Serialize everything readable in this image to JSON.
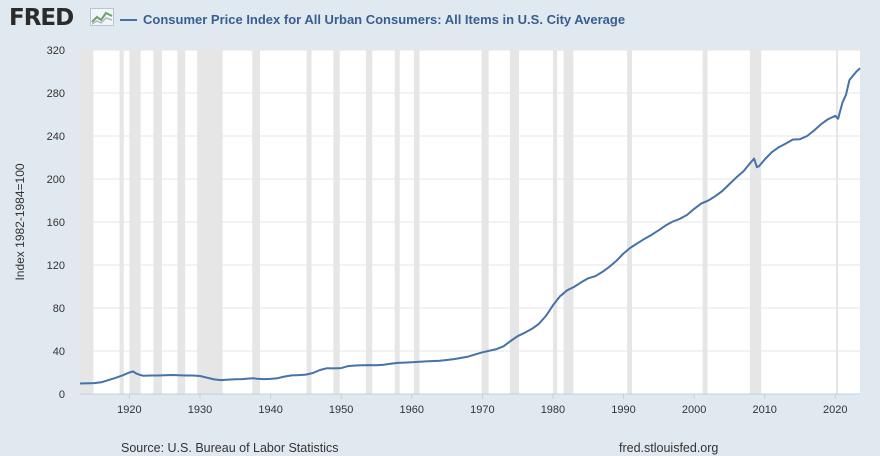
{
  "header": {
    "logo": "FRED",
    "legend_label": "Consumer Price Index for All Urban Consumers: All Items in U.S. City Average"
  },
  "footer": {
    "source": "Source: U.S. Bureau of Labor Statistics",
    "site": "fred.stlouisfed.org"
  },
  "colors": {
    "series": "#4572a7",
    "plot_bg": "#ffffff",
    "page_bg": "#e1e9f0",
    "recession": "#e6e6e6"
  },
  "chart_data": {
    "type": "line",
    "title": "Consumer Price Index for All Urban Consumers: All Items in U.S. City Average",
    "xlabel": "",
    "ylabel": "Index 1982-1984=100",
    "xlim": [
      1913,
      2023.5
    ],
    "ylim": [
      0,
      320
    ],
    "x_ticks": [
      1920,
      1930,
      1940,
      1950,
      1960,
      1970,
      1980,
      1990,
      2000,
      2010,
      2020
    ],
    "y_ticks": [
      0,
      40,
      80,
      120,
      160,
      200,
      240,
      280,
      320
    ],
    "grid": true,
    "recessions": [
      [
        1913.0,
        1914.9
      ],
      [
        1918.6,
        1919.2
      ],
      [
        1920.0,
        1921.6
      ],
      [
        1923.4,
        1924.6
      ],
      [
        1926.8,
        1927.9
      ],
      [
        1929.6,
        1933.2
      ],
      [
        1937.4,
        1938.5
      ],
      [
        1945.1,
        1945.8
      ],
      [
        1948.9,
        1949.8
      ],
      [
        1953.5,
        1954.4
      ],
      [
        1957.6,
        1958.3
      ],
      [
        1960.3,
        1961.1
      ],
      [
        1969.9,
        1970.9
      ],
      [
        1973.9,
        1975.2
      ],
      [
        1980.0,
        1980.6
      ],
      [
        1981.5,
        1982.9
      ],
      [
        1990.5,
        1991.2
      ],
      [
        2001.2,
        2001.9
      ],
      [
        2007.9,
        2009.5
      ],
      [
        2020.1,
        2020.4
      ]
    ],
    "series": [
      {
        "name": "CPIAUCSL",
        "x": [
          1913,
          1915,
          1916,
          1917,
          1918,
          1919,
          1920,
          1920.5,
          1921,
          1921.5,
          1922,
          1923,
          1924,
          1925,
          1926,
          1927,
          1928,
          1929,
          1930,
          1931,
          1932,
          1933,
          1934,
          1935,
          1936,
          1937,
          1937.7,
          1938,
          1939,
          1940,
          1941,
          1942,
          1943,
          1944,
          1945,
          1946,
          1947,
          1948,
          1949,
          1950,
          1951,
          1952,
          1953,
          1954,
          1955,
          1956,
          1957,
          1958,
          1959,
          1960,
          1962,
          1964,
          1966,
          1968,
          1970,
          1972,
          1973,
          1974,
          1975,
          1976,
          1977,
          1978,
          1979,
          1980,
          1981,
          1982,
          1983,
          1984,
          1985,
          1986,
          1987,
          1988,
          1989,
          1990,
          1991,
          1992,
          1993,
          1994,
          1995,
          1996,
          1997,
          1998,
          1999,
          2000,
          2001,
          2002,
          2003,
          2004,
          2005,
          2006,
          2007,
          2008,
          2008.5,
          2008.9,
          2009.2,
          2010,
          2011,
          2012,
          2013,
          2014,
          2015,
          2016,
          2017,
          2018,
          2019,
          2020,
          2020.4,
          2021,
          2021.5,
          2022,
          2022.5,
          2023,
          2023.5
        ],
        "values": [
          9.8,
          10.1,
          10.9,
          12.8,
          15.0,
          17.3,
          20.0,
          21.0,
          19.0,
          17.8,
          16.9,
          17.2,
          17.2,
          17.5,
          17.7,
          17.4,
          17.2,
          17.2,
          16.7,
          15.2,
          13.6,
          12.9,
          13.4,
          13.7,
          13.9,
          14.4,
          14.6,
          14.1,
          13.9,
          14.0,
          14.7,
          16.3,
          17.3,
          17.6,
          18.0,
          19.5,
          22.3,
          24.0,
          23.8,
          24.1,
          26.0,
          26.5,
          26.7,
          26.9,
          26.8,
          27.2,
          28.1,
          28.9,
          29.2,
          29.6,
          30.3,
          31.0,
          32.5,
          34.8,
          38.8,
          41.8,
          44.4,
          49.3,
          53.8,
          56.9,
          60.6,
          65.2,
          72.6,
          82.4,
          90.9,
          96.5,
          99.6,
          103.9,
          107.6,
          109.6,
          113.6,
          118.3,
          124.0,
          130.7,
          136.2,
          140.3,
          144.5,
          148.2,
          152.4,
          156.9,
          160.5,
          163.0,
          166.6,
          172.2,
          177.1,
          179.9,
          184.0,
          188.9,
          195.3,
          201.6,
          207.3,
          215.3,
          219.0,
          211.0,
          212.0,
          218.1,
          224.9,
          229.6,
          233.0,
          236.7,
          237.0,
          240.0,
          245.1,
          251.1,
          255.7,
          258.8,
          256.0,
          271.0,
          278.0,
          292.0,
          296.0,
          300.0,
          303.0
        ]
      }
    ]
  }
}
